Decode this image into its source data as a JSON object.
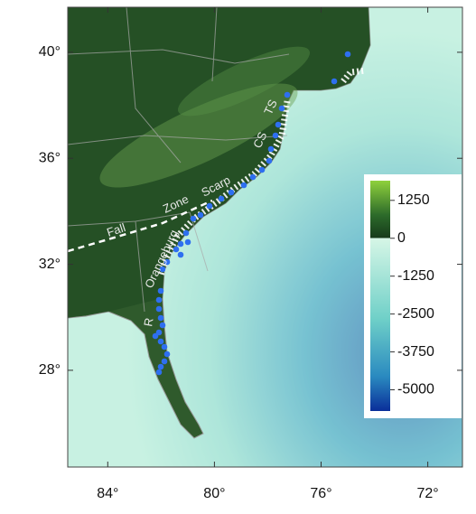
{
  "map": {
    "lat_axis": {
      "lim": [
        24.35,
        41.7
      ],
      "ticks": [
        {
          "value": 40,
          "label": "40°"
        },
        {
          "value": 36,
          "label": "36°"
        },
        {
          "value": 32,
          "label": "32°"
        },
        {
          "value": 28,
          "label": "28°"
        }
      ]
    },
    "lon_axis": {
      "lim": [
        -85.5,
        -70.7
      ],
      "ticks": [
        {
          "value": -84,
          "label": "84°"
        },
        {
          "value": -80,
          "label": "80°"
        },
        {
          "value": -76,
          "label": "76°"
        },
        {
          "value": -72,
          "label": "72°"
        }
      ]
    },
    "annotations": {
      "fall": "Fall",
      "zone": "Zone",
      "scarp": "Scarp",
      "orangeburg": "Orangeburg",
      "cs": "CS",
      "ts": "TS",
      "r": "R"
    },
    "colorbar": {
      "lim": [
        -5700,
        1900
      ],
      "ticks": [
        1250,
        0,
        -1250,
        -2500,
        -3750,
        -5000
      ]
    }
  }
}
